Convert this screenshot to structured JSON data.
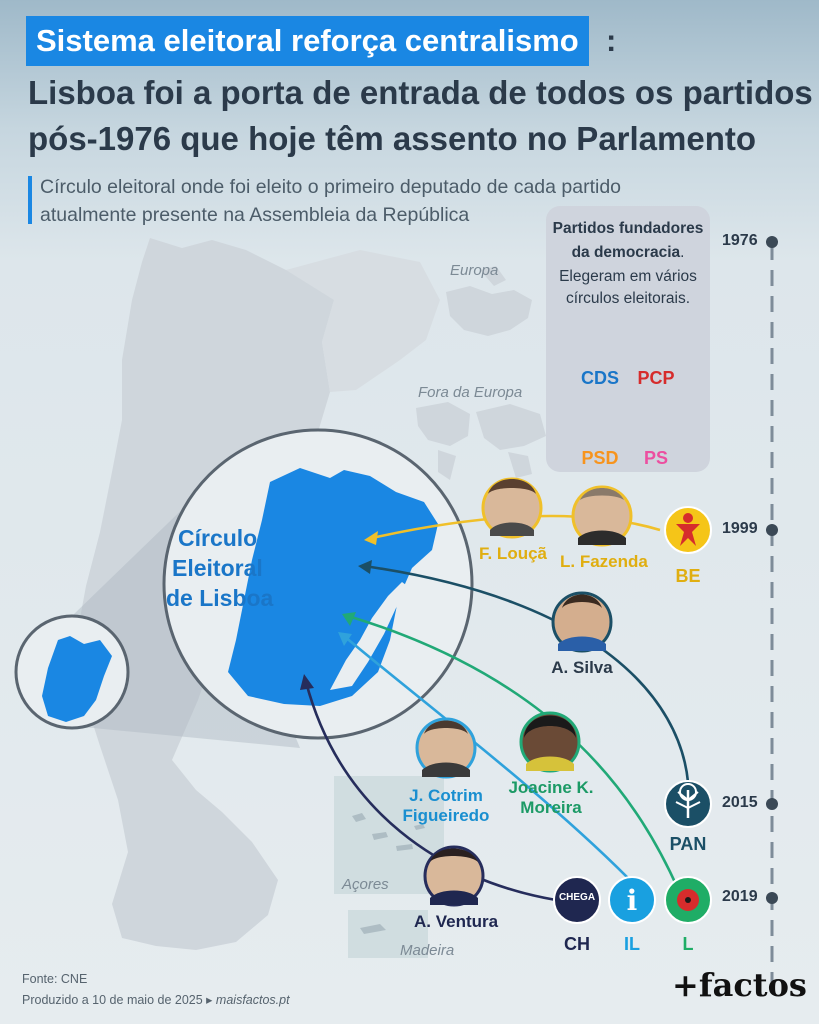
{
  "headline": {
    "highlight": "Sistema eleitoral reforça centralismo",
    "colon": ":",
    "line2": "Lisboa foi a porta de entrada de todos os partidos",
    "line3": "pós-1976 que hoje têm assento no Parlamento"
  },
  "subtitle": {
    "line1": "Círculo eleitoral onde foi eleito o primeiro deputado de cada partido",
    "line2": "atualmente presente na Assembleia da República"
  },
  "map_labels": {
    "europa": "Europa",
    "fora_europa": "Fora da Europa",
    "acores": "Açores",
    "madeira": "Madeira",
    "circulo_line1": "Círculo",
    "circulo_line2": "Eleitoral",
    "circulo_line3": "de Lisboa"
  },
  "founders": {
    "title_line1": "Partidos fundadores",
    "title_line2_bold": "da democracia",
    "title_line2_rest": ".",
    "text_line1": "Elegeram em vários",
    "text_line2": "círculos eleitorais.",
    "parties": [
      {
        "label": "CDS",
        "color": "#1a87e3",
        "icon": "cds-arrows-icon"
      },
      {
        "label": "PCP",
        "color": "#d62c2c",
        "icon": "hammer-sickle-icon"
      },
      {
        "label": "PSD",
        "color": "#f7941d",
        "icon": "psd-arrows-icon"
      },
      {
        "label": "PS",
        "color": "#ec4fa0",
        "icon": "fist-icon"
      }
    ]
  },
  "timeline": {
    "years": [
      "1976",
      "1999",
      "2015",
      "2019"
    ]
  },
  "people": {
    "louca": "F. Louçã",
    "fazenda": "L. Fazenda",
    "silva": "A. Silva",
    "cotrim_line1": "J. Cotrim",
    "cotrim_line2": "Figueiredo",
    "joacine_line1": "Joacine K.",
    "joacine_line2": "Moreira",
    "ventura": "A. Ventura"
  },
  "parties": {
    "be": {
      "label": "BE",
      "color": "#f5c518"
    },
    "pan": {
      "label": "PAN",
      "color": "#1b4f66"
    },
    "ch": {
      "label": "CH",
      "color": "#1f2750",
      "logo_text": "CHEGA"
    },
    "il": {
      "label": "IL",
      "color": "#19a0e0",
      "logo_text": "i"
    },
    "l": {
      "label": "L",
      "color": "#1fad66"
    }
  },
  "colors": {
    "lisbon_blue": "#1a87e3",
    "map_gray": "#cfd6dc",
    "be_line": "#f0c02a",
    "pan_line": "#1b4f66",
    "l_line": "#21a977",
    "il_line": "#2fa2dc",
    "ch_line": "#262d5c"
  },
  "footer": {
    "source": "Fonte: CNE",
    "produced": "Produzido a 10 de maio de 2025 ▸",
    "site": "maisfactos.pt",
    "brand": "+factos"
  }
}
